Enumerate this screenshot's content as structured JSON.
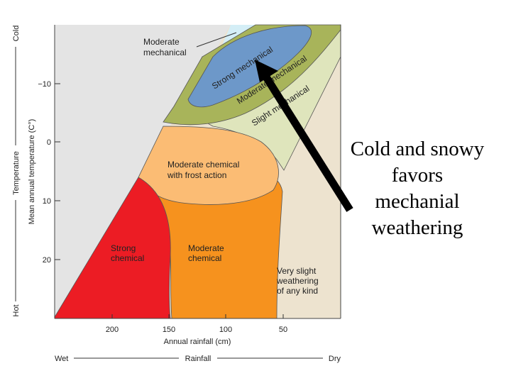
{
  "zones": {
    "moderate_mechanical": [
      "Moderate",
      "mechanical"
    ],
    "strong_mechanical": "Strong mechanical",
    "moderate_mechanical_band": "Moderate mechanical",
    "slight_mechanical": "Slight mechanical",
    "moderate_chemical_frost": [
      "Moderate chemical",
      "with frost action"
    ],
    "strong_chemical": [
      "Strong",
      "chemical"
    ],
    "moderate_chemical": [
      "Moderate",
      "chemical"
    ],
    "very_slight": [
      "Very slight",
      "weathering",
      "of any kind"
    ]
  },
  "y_axis": {
    "title": "Mean annual temperature (C°)",
    "ticks": [
      "−10",
      "0",
      "10",
      "20"
    ],
    "scale": {
      "cold": "Cold",
      "label": "Temperature",
      "hot": "Hot"
    }
  },
  "x_axis": {
    "title": "Annual rainfall (cm)",
    "ticks": [
      "200",
      "150",
      "100",
      "50"
    ],
    "scale": {
      "wet": "Wet",
      "label": "Rainfall",
      "dry": "Dry"
    }
  },
  "caption": [
    "Cold and snowy",
    "favors",
    "mechanial",
    "weathering"
  ],
  "colors": {
    "gray_region": "#e4e4e4",
    "light_blue": "#d4eef6",
    "strong_mechanical": "#6d98c9",
    "moderate_mechanical": "#a8b45a",
    "slight_mechanical": "#dfe5bc",
    "very_slight": "#ede3cf",
    "moderate_chemical_frost": "#fbbc74",
    "moderate_chemical": "#f6921e",
    "strong_chemical": "#ec1c24",
    "arrow": "#000000"
  }
}
